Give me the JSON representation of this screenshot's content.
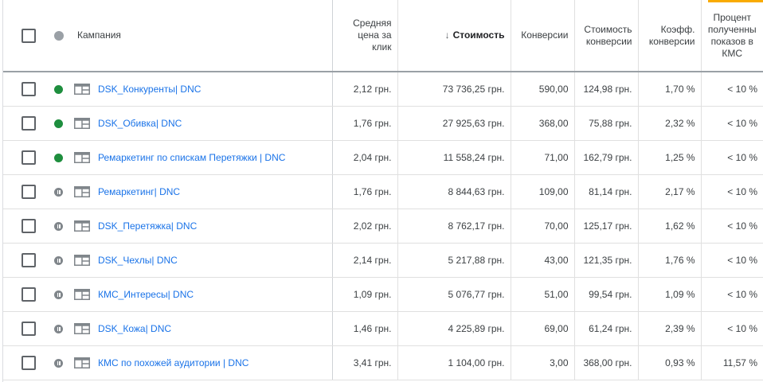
{
  "accent_color": "#f9ab00",
  "columns": {
    "campaign": "Кампания",
    "cpc": "Средняя цена за клик",
    "cost": "Стоимость",
    "conversions": "Конверсии",
    "cost_per_conversion": "Стоимость конверсии",
    "conversion_rate": "Коэфф. конверсии",
    "gdn_impr_share": "Процент полученны показов в КМС",
    "sort_icon": "arrow-down-icon"
  },
  "status_colors": {
    "enabled": "#1e8e3e",
    "paused": "#80868b"
  },
  "rows": [
    {
      "status": "enabled",
      "name": "DSK_Конкуренты| DNC",
      "cpc": "2,12 грн.",
      "cost": "73 736,25 грн.",
      "conversions": "590,00",
      "cost_per_conversion": "124,98 грн.",
      "conversion_rate": "1,70 %",
      "gdn_impr_share": "< 10 %"
    },
    {
      "status": "enabled",
      "name": "DSK_Обивка| DNC",
      "cpc": "1,76 грн.",
      "cost": "27 925,63 грн.",
      "conversions": "368,00",
      "cost_per_conversion": "75,88 грн.",
      "conversion_rate": "2,32 %",
      "gdn_impr_share": "< 10 %"
    },
    {
      "status": "enabled",
      "name": "Ремаркетинг по спискам Перетяжки | DNC",
      "cpc": "2,04 грн.",
      "cost": "11 558,24 грн.",
      "conversions": "71,00",
      "cost_per_conversion": "162,79 грн.",
      "conversion_rate": "1,25 %",
      "gdn_impr_share": "< 10 %"
    },
    {
      "status": "paused",
      "name": "Ремаркетинг| DNC",
      "cpc": "1,76 грн.",
      "cost": "8 844,63 грн.",
      "conversions": "109,00",
      "cost_per_conversion": "81,14 грн.",
      "conversion_rate": "2,17 %",
      "gdn_impr_share": "< 10 %"
    },
    {
      "status": "paused",
      "name": "DSK_Перетяжка| DNC",
      "cpc": "2,02 грн.",
      "cost": "8 762,17 грн.",
      "conversions": "70,00",
      "cost_per_conversion": "125,17 грн.",
      "conversion_rate": "1,62 %",
      "gdn_impr_share": "< 10 %"
    },
    {
      "status": "paused",
      "name": "DSK_Чехлы| DNC",
      "cpc": "2,14 грн.",
      "cost": "5 217,88 грн.",
      "conversions": "43,00",
      "cost_per_conversion": "121,35 грн.",
      "conversion_rate": "1,76 %",
      "gdn_impr_share": "< 10 %"
    },
    {
      "status": "paused",
      "name": "КМС_Интересы| DNC",
      "cpc": "1,09 грн.",
      "cost": "5 076,77 грн.",
      "conversions": "51,00",
      "cost_per_conversion": "99,54 грн.",
      "conversion_rate": "1,09 %",
      "gdn_impr_share": "< 10 %"
    },
    {
      "status": "paused",
      "name": "DSK_Кожа| DNC",
      "cpc": "1,46 грн.",
      "cost": "4 225,89 грн.",
      "conversions": "69,00",
      "cost_per_conversion": "61,24 грн.",
      "conversion_rate": "2,39 %",
      "gdn_impr_share": "< 10 %"
    },
    {
      "status": "paused",
      "name": "КМС по похожей аудитории | DNC",
      "cpc": "3,41 грн.",
      "cost": "1 104,00 грн.",
      "conversions": "3,00",
      "cost_per_conversion": "368,00 грн.",
      "conversion_rate": "0,93 %",
      "gdn_impr_share": "11,57 %"
    }
  ]
}
